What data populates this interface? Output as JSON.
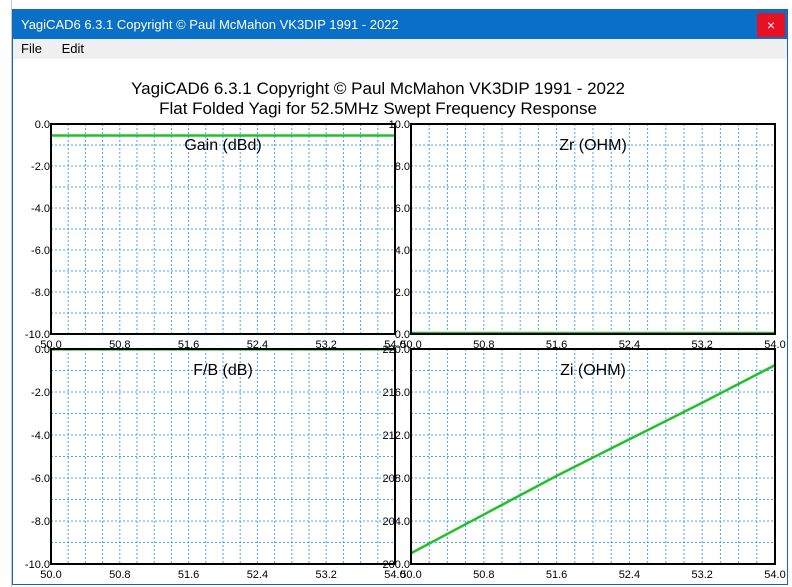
{
  "window": {
    "title": "YagiCAD6 6.3.1   Copyright © Paul McMahon VK3DIP 1991 - 2022",
    "close_label": "×"
  },
  "menu": {
    "items": [
      "File",
      "Edit"
    ]
  },
  "header": {
    "line1": "YagiCAD6 6.3.1   Copyright © Paul McMahon VK3DIP 1991 - 2022",
    "line2": "Flat Folded Yagi for 52.5MHz Swept Frequency Response"
  },
  "colors": {
    "trace": "#22c02a",
    "grid": "#4aa3ee",
    "frame": "#000000"
  },
  "chart_data": [
    {
      "type": "line",
      "title": "Gain (dBd)",
      "xlim": [
        50.0,
        54.0
      ],
      "ylim": [
        -10.0,
        0.0
      ],
      "x_ticks": [
        "50.0",
        "50.8",
        "51.6",
        "52.4",
        "53.2",
        "54.0"
      ],
      "y_ticks": [
        "0.0",
        "-2.0",
        "-4.0",
        "-6.0",
        "-8.0",
        "-10.0"
      ],
      "grid": true,
      "x": [
        50.0,
        54.0
      ],
      "y": [
        -0.55,
        -0.55
      ]
    },
    {
      "type": "line",
      "title": "Zr (OHM)",
      "xlim": [
        50.0,
        54.0
      ],
      "ylim": [
        0.0,
        10.0
      ],
      "x_ticks": [
        "50.0",
        "50.8",
        "51.6",
        "52.4",
        "53.2",
        "54.0"
      ],
      "y_ticks": [
        "10.0",
        "8.0",
        "6.0",
        "4.0",
        "2.0",
        "0.0"
      ],
      "grid": true,
      "x": [
        50.0,
        54.0
      ],
      "y": [
        0.05,
        0.05
      ]
    },
    {
      "type": "line",
      "title": "F/B (dB)",
      "xlim": [
        50.0,
        54.0
      ],
      "ylim": [
        -10.0,
        0.0
      ],
      "x_ticks": [
        "50.0",
        "50.8",
        "51.6",
        "52.4",
        "53.2",
        "54.0"
      ],
      "y_ticks": [
        "0.0",
        "-2.0",
        "-4.0",
        "-6.0",
        "-8.0",
        "-10.0"
      ],
      "grid": true,
      "x": [
        50.0,
        54.0
      ],
      "y": [
        -0.02,
        -0.02
      ]
    },
    {
      "type": "line",
      "title": "Zi (OHM)",
      "xlim": [
        50.0,
        54.0
      ],
      "ylim": [
        200.0,
        220.0
      ],
      "x_ticks": [
        "50.0",
        "50.8",
        "51.6",
        "52.4",
        "53.2",
        "54.0"
      ],
      "y_ticks": [
        "220.0",
        "216.0",
        "212.0",
        "208.0",
        "204.0",
        "200.0"
      ],
      "grid": true,
      "x": [
        50.0,
        50.8,
        51.6,
        52.4,
        53.2,
        54.0
      ],
      "y": [
        201.0,
        204.6,
        208.2,
        211.6,
        215.0,
        218.5
      ]
    }
  ]
}
